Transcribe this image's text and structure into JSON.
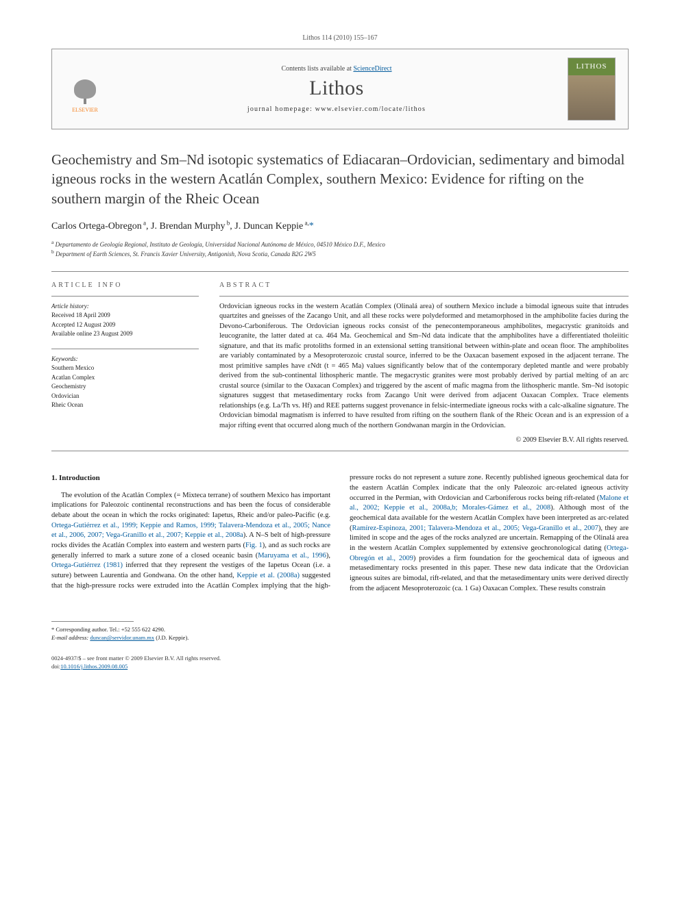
{
  "header": {
    "running_head": "Lithos 114 (2010) 155–167",
    "contents_line_prefix": "Contents lists available at ",
    "contents_link": "ScienceDirect",
    "journal_name": "Lithos",
    "homepage_label": "journal homepage: www.elsevier.com/locate/lithos",
    "publisher_name": "ELSEVIER",
    "cover_label": "LITHOS"
  },
  "article": {
    "title": "Geochemistry and Sm–Nd isotopic systematics of Ediacaran–Ordovician, sedimentary and bimodal igneous rocks in the western Acatlán Complex, southern Mexico: Evidence for rifting on the southern margin of the Rheic Ocean",
    "authors_html": "Carlos Ortega-Obregon <sup>a</sup>, J. Brendan Murphy <sup>b</sup>, J. Duncan Keppie <sup>a,</sup>",
    "corr_marker": "*",
    "affiliations": {
      "a": "Departamento de Geología Regional, Instituto de Geología, Universidad Nacional Autónoma de México, 04510 México D.F., Mexico",
      "b": "Department of Earth Sciences, St. Francis Xavier University, Antigonish, Nova Scotia, Canada B2G 2W5"
    }
  },
  "info": {
    "section_label": "ARTICLE INFO",
    "history_label": "Article history:",
    "received": "Received 18 April 2009",
    "accepted": "Accepted 12 August 2009",
    "online": "Available online 23 August 2009",
    "keywords_label": "Keywords:",
    "keywords": [
      "Southern Mexico",
      "Acatlan Complex",
      "Geochemistry",
      "Ordovician",
      "Rheic Ocean"
    ]
  },
  "abstract": {
    "section_label": "ABSTRACT",
    "text": "Ordovician igneous rocks in the western Acatlán Complex (Olinalá area) of southern Mexico include a bimodal igneous suite that intrudes quartzites and gneisses of the Zacango Unit, and all these rocks were polydeformed and metamorphosed in the amphibolite facies during the Devono-Carboniferous. The Ordovician igneous rocks consist of the penecontemporaneous amphibolites, megacrystic granitoids and leucogranite, the latter dated at ca. 464 Ma. Geochemical and Sm–Nd data indicate that the amphibolites have a differentiated tholeiitic signature, and that its mafic protoliths formed in an extensional setting transitional between within-plate and ocean floor. The amphibolites are variably contaminated by a Mesoproterozoic crustal source, inferred to be the Oaxacan basement exposed in the adjacent terrane. The most primitive samples have εNdt (t = 465 Ma) values significantly below that of the contemporary depleted mantle and were probably derived from the sub-continental lithospheric mantle. The megacrystic granites were most probably derived by partial melting of an arc crustal source (similar to the Oaxacan Complex) and triggered by the ascent of mafic magma from the lithospheric mantle. Sm–Nd isotopic signatures suggest that metasedimentary rocks from Zacango Unit were derived from adjacent Oaxacan Complex. Trace elements relationships (e.g. La/Th vs. Hf) and REE patterns suggest provenance in felsic-intermediate igneous rocks with a calc-alkaline signature. The Ordovician bimodal magmatism is inferred to have resulted from rifting on the southern flank of the Rheic Ocean and is an expression of a major rifting event that occurred along much of the northern Gondwanan margin in the Ordovician.",
    "copyright": "© 2009 Elsevier B.V. All rights reserved."
  },
  "body": {
    "section_number": "1.",
    "section_title": "Introduction",
    "para1_pre": "The evolution of the Acatlán Complex (= Mixteca terrane) of southern Mexico has important implications for Paleozoic continental reconstructions and has been the focus of considerable debate about the ocean in which the rocks originated: Iapetus, Rheic and/or paleo-Pacific (e.g. ",
    "para1_cite1": "Ortega-Gutiérrez et al., 1999; Keppie and Ramos, 1999; Talavera-Mendoza et al., 2005; Nance et al., 2006, 2007; Vega-Granillo et al., 2007; Keppie et al., 2008a",
    "para1_mid1": "). A N–S belt of high-pressure rocks divides the Acatlán Complex into eastern and western parts (",
    "para1_fig": "Fig. 1",
    "para1_mid2": "), and as such rocks are generally inferred to mark a suture zone of a closed oceanic basin (",
    "para1_cite2": "Maruyama et al., 1996",
    "para1_mid3": "), ",
    "para1_cite3": "Ortega-Gutiérrez (1981)",
    "para1_mid4": " inferred that they represent the vestiges of the Iapetus Ocean (i.e. a suture) between Laurentia and Gondwana. On the other hand, ",
    "para1_cite4": "Keppie et al. (2008a)",
    "para1_mid5": " suggested that the high-pressure rocks were extruded into the Acatlán Complex implying that the high-pressure rocks do not represent a suture zone. Recently published igneous geochemical data for the eastern Acatlán Complex indicate that the only Paleozoic arc-related igneous activity occurred in the Permian, with Ordovician and Carboniferous rocks being rift-related (",
    "para1_cite5": "Malone et al., 2002; Keppie et al., 2008a,b; Morales-Gámez et al., 2008",
    "para1_mid6": "). Although most of the geochemical data available for the western Acatlán Complex have been interpreted as arc-related (",
    "para1_cite6": "Ramírez-Espinoza, 2001; Talavera-Mendoza et al., 2005; Vega-Granillo et al., 2007",
    "para1_mid7": "), they are limited in scope and the ages of the rocks analyzed are uncertain. Remapping of the Olinalá area in the western Acatlán Complex supplemented by extensive geochronological dating (",
    "para1_cite7": "Ortega-Obregón et al., 2009",
    "para1_end": ") provides a firm foundation for the geochemical data of igneous and metasedimentary rocks presented in this paper. These new data indicate that the Ordovician igneous suites are bimodal, rift-related, and that the metasedimentary units were derived directly from the adjacent Mesoproterozoic (ca. 1 Ga) Oaxacan Complex. These results constrain"
  },
  "footnote": {
    "corr_label": "* Corresponding author. Tel.: +52 555 622 4290.",
    "email_label": "E-mail address:",
    "email": "duncan@servidor.unam.mx",
    "email_who": "(J.D. Keppie)."
  },
  "footer": {
    "issn": "0024-4937/$ – see front matter © 2009 Elsevier B.V. All rights reserved.",
    "doi_label": "doi:",
    "doi": "10.1016/j.lithos.2009.08.005"
  },
  "colors": {
    "link": "#005a9c",
    "text": "#1a1a1a",
    "rule": "#888888",
    "elsevier_orange": "#f58220"
  },
  "typography": {
    "body_fontsize_pt": 10.5,
    "title_fontsize_pt": 21,
    "journal_fontsize_pt": 30,
    "small_fontsize_pt": 9,
    "font_family": "Georgia, Times New Roman, serif"
  }
}
